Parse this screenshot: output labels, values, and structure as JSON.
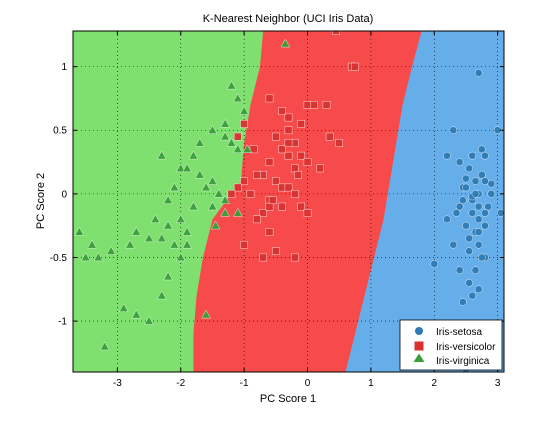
{
  "chart_data": {
    "type": "scatter",
    "title": "K-Nearest Neighbor (UCI Iris Data)",
    "xlabel": "PC Score 1",
    "ylabel": "PC Score 2",
    "xlim": [
      -3.7,
      3.1
    ],
    "ylim": [
      -1.4,
      1.28
    ],
    "x_ticks": [
      -3,
      -2,
      -1,
      0,
      1,
      2,
      3
    ],
    "y_ticks": [
      -1,
      -0.5,
      0,
      0.5,
      1
    ],
    "x_tick_labels": [
      "-3",
      "-2",
      "-1",
      "0",
      "1",
      "2",
      "3"
    ],
    "y_tick_labels": [
      "-1",
      "-0.5",
      "0",
      "0.5",
      "1"
    ],
    "grid": true,
    "legend_position": "bottom-right",
    "decision_regions": {
      "y_samples": [
        1.28,
        1.0,
        0.7,
        0.4,
        0.1,
        -0.2,
        -0.5,
        -0.8,
        -1.1,
        -1.4
      ],
      "boundary_virginica_versicolor_x": [
        -0.7,
        -0.75,
        -0.9,
        -1.0,
        -1.05,
        -1.5,
        -1.65,
        -1.75,
        -1.8,
        -1.8
      ],
      "boundary_versicolor_setosa_x": [
        1.8,
        1.65,
        1.5,
        1.4,
        1.3,
        1.2,
        1.05,
        0.9,
        0.75,
        0.6
      ]
    },
    "series": [
      {
        "name": "Iris-setosa",
        "marker": "circle",
        "color": "#2e7bb4",
        "region_color": "#66aeea",
        "x": [
          2.7,
          2.3,
          2.8,
          2.6,
          2.75,
          2.55,
          2.65,
          2.45,
          2.9,
          2.7,
          2.5,
          2.6,
          2.85,
          2.4,
          2.6,
          2.7,
          2.8,
          2.5,
          2.65,
          2.55,
          2.7,
          2.3,
          2.2,
          2.4,
          2.6,
          2.75,
          2.5,
          2.9,
          2.6,
          2.45,
          2.7,
          2.35,
          2.55,
          2.8,
          2.0,
          2.65,
          2.55,
          2.7,
          2.45,
          2.6,
          2.8,
          2.75,
          2.4,
          2.5,
          3.0,
          3.05,
          2.2,
          2.7,
          2.65,
          2.8
        ],
        "y": [
          0.95,
          0.5,
          0.3,
          0.3,
          0.15,
          0.2,
          0.1,
          0.05,
          0.0,
          0.0,
          0.05,
          -0.05,
          -0.1,
          -0.1,
          -0.15,
          -0.2,
          -0.25,
          -0.25,
          -0.3,
          -0.35,
          -0.4,
          -0.4,
          0.3,
          0.25,
          0.3,
          0.35,
          0.12,
          0.08,
          -0.02,
          -0.05,
          -0.3,
          -0.15,
          -0.45,
          -0.5,
          -0.55,
          -0.6,
          -0.7,
          -0.75,
          -0.85,
          -0.8,
          -0.15,
          -0.5,
          -0.6,
          -1.4,
          0.5,
          -0.15,
          -0.2,
          -0.1,
          0.0,
          0.1
        ]
      },
      {
        "name": "Iris-versicolor",
        "marker": "square",
        "color": "#d93030",
        "region_color": "#f74b4b",
        "x": [
          0.45,
          0.7,
          0.75,
          0.3,
          0.0,
          0.1,
          -0.6,
          -0.4,
          -0.1,
          -0.3,
          -0.5,
          -0.3,
          -0.2,
          -0.1,
          0.0,
          0.2,
          0.35,
          0.5,
          -0.3,
          -0.2,
          -0.6,
          -0.7,
          -0.8,
          -0.5,
          -0.4,
          -1.0,
          -1.1,
          -1.2,
          -0.9,
          -0.6,
          -0.3,
          -0.2,
          -0.4,
          -0.1,
          0.0,
          -0.7,
          -0.8,
          -0.6,
          -1.0,
          -0.7,
          -0.5,
          -0.2,
          -1.1,
          -1.0,
          -0.85,
          -0.6,
          -0.55,
          -0.4,
          -0.3,
          -0.15
        ],
        "y": [
          1.28,
          1.0,
          1.0,
          0.7,
          0.7,
          0.7,
          0.75,
          0.65,
          0.55,
          0.6,
          0.45,
          0.5,
          0.4,
          0.3,
          0.25,
          0.2,
          0.45,
          0.4,
          0.3,
          0.2,
          0.25,
          0.15,
          0.15,
          0.1,
          0.05,
          0.1,
          0.05,
          0.0,
          0.0,
          -0.05,
          0.05,
          0.0,
          -0.1,
          -0.1,
          -0.15,
          -0.15,
          -0.2,
          -0.3,
          -0.4,
          -0.5,
          -0.45,
          -0.5,
          0.45,
          0.55,
          0.35,
          -0.1,
          -0.05,
          0.35,
          0.4,
          0.15
        ]
      },
      {
        "name": "Iris-virginica",
        "marker": "triangle",
        "color": "#3a9e3a",
        "region_color": "#7fe06f",
        "x": [
          -0.35,
          -1.2,
          -1.1,
          -1.0,
          -1.3,
          -1.5,
          -1.7,
          -1.3,
          -1.2,
          -1.1,
          -0.95,
          -1.8,
          -2.3,
          -2.0,
          -1.9,
          -1.7,
          -1.5,
          -1.6,
          -1.4,
          -1.3,
          -2.1,
          -2.2,
          -1.8,
          -1.5,
          -1.3,
          -1.1,
          -2.0,
          -2.4,
          -2.2,
          -1.9,
          -2.3,
          -2.1,
          -1.9,
          -2.0,
          -2.7,
          -2.5,
          -2.8,
          -3.1,
          -3.3,
          -3.4,
          -3.5,
          -3.6,
          -2.9,
          -2.7,
          -2.5,
          -2.3,
          -3.2,
          -1.6,
          -2.2,
          -1.45
        ],
        "y": [
          1.18,
          0.85,
          0.75,
          0.65,
          0.55,
          0.5,
          0.4,
          0.45,
          0.4,
          0.35,
          0.35,
          0.3,
          0.3,
          0.2,
          0.2,
          0.15,
          0.1,
          0.05,
          0.0,
          -0.05,
          0.05,
          -0.05,
          -0.1,
          -0.1,
          -0.15,
          -0.15,
          -0.2,
          -0.2,
          -0.25,
          -0.3,
          -0.35,
          -0.4,
          -0.4,
          -0.5,
          -0.3,
          -0.35,
          -0.4,
          -0.45,
          -0.5,
          -0.4,
          -0.5,
          -0.3,
          -0.9,
          -0.95,
          -1.0,
          -0.8,
          -1.2,
          -0.95,
          -0.65,
          -0.25
        ]
      }
    ]
  }
}
